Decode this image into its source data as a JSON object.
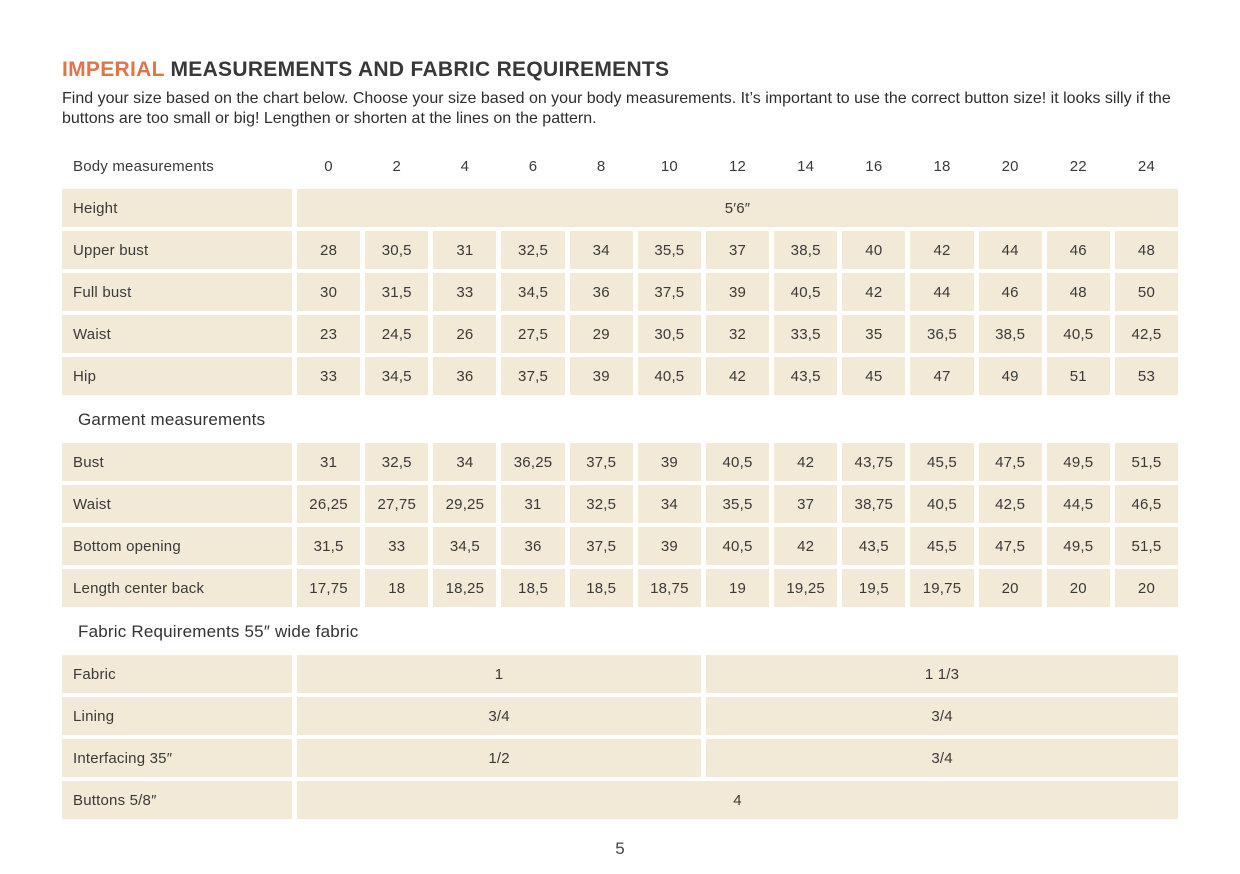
{
  "page": {
    "title_highlight": "IMPERIAL",
    "title_rest": " MEASUREMENTS AND FABRIC REQUIREMENTS",
    "intro": "Find your size based on the chart below. Choose your size based on your body measurements. It’s important to use the correct button size! it looks silly if the buttons are too small or big! Lengthen or shorten at the lines on the pattern.",
    "page_number": "5"
  },
  "colors": {
    "accent_orange": "#df764a",
    "cell_beige": "#f2e9d6",
    "text_dark": "#3a3a3a"
  },
  "size_chart": {
    "header_label": "Body measurements",
    "sizes": [
      "0",
      "2",
      "4",
      "6",
      "8",
      "10",
      "12",
      "14",
      "16",
      "18",
      "20",
      "22",
      "24"
    ],
    "body_rows": [
      {
        "label": "Height",
        "span_value": "5′6″"
      },
      {
        "label": "Upper bust",
        "values": [
          "28",
          "30,5",
          "31",
          "32,5",
          "34",
          "35,5",
          "37",
          "38,5",
          "40",
          "42",
          "44",
          "46",
          "48"
        ]
      },
      {
        "label": "Full bust",
        "values": [
          "30",
          "31,5",
          "33",
          "34,5",
          "36",
          "37,5",
          "39",
          "40,5",
          "42",
          "44",
          "46",
          "48",
          "50"
        ]
      },
      {
        "label": "Waist",
        "values": [
          "23",
          "24,5",
          "26",
          "27,5",
          "29",
          "30,5",
          "32",
          "33,5",
          "35",
          "36,5",
          "38,5",
          "40,5",
          "42,5"
        ]
      },
      {
        "label": "Hip",
        "values": [
          "33",
          "34,5",
          "36",
          "37,5",
          "39",
          "40,5",
          "42",
          "43,5",
          "45",
          "47",
          "49",
          "51",
          "53"
        ]
      }
    ],
    "garment_header": "Garment measurements",
    "garment_rows": [
      {
        "label": "Bust",
        "values": [
          "31",
          "32,5",
          "34",
          "36,25",
          "37,5",
          "39",
          "40,5",
          "42",
          "43,75",
          "45,5",
          "47,5",
          "49,5",
          "51,5"
        ]
      },
      {
        "label": "Waist",
        "values": [
          "26,25",
          "27,75",
          "29,25",
          "31",
          "32,5",
          "34",
          "35,5",
          "37",
          "38,75",
          "40,5",
          "42,5",
          "44,5",
          "46,5"
        ]
      },
      {
        "label": "Bottom opening",
        "values": [
          "31,5",
          "33",
          "34,5",
          "36",
          "37,5",
          "39",
          "40,5",
          "42",
          "43,5",
          "45,5",
          "47,5",
          "49,5",
          "51,5"
        ]
      },
      {
        "label": "Length center back",
        "values": [
          "17,75",
          "18",
          "18,25",
          "18,5",
          "18,5",
          "18,75",
          "19",
          "19,25",
          "19,5",
          "19,75",
          "20",
          "20",
          "20"
        ]
      }
    ],
    "fabric_header": "Fabric Requirements 55″ wide fabric",
    "fabric_rows": [
      {
        "label": "Fabric",
        "left_value": "1",
        "right_value": "1 1/3"
      },
      {
        "label": "Lining",
        "left_value": "3/4",
        "right_value": "3/4"
      },
      {
        "label": "Interfacing 35″",
        "left_value": "1/2",
        "right_value": "3/4"
      },
      {
        "label": "Buttons 5/8″",
        "span_value": "4"
      }
    ]
  }
}
